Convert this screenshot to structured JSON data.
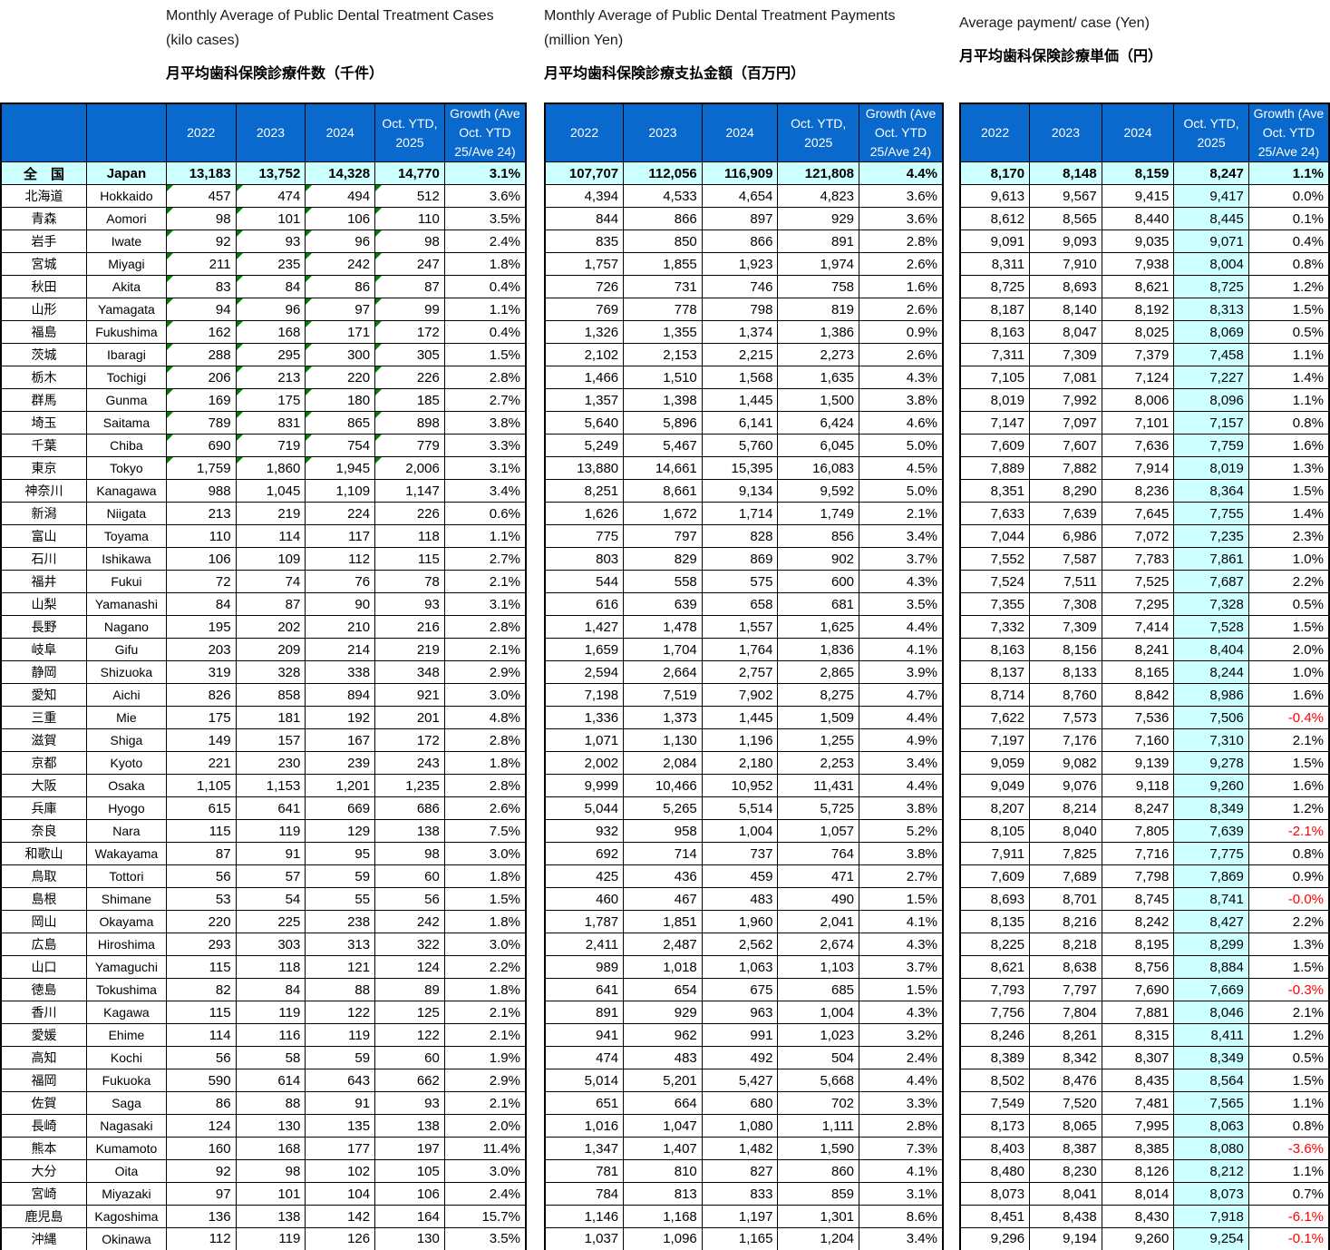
{
  "colors": {
    "header_bg": "#0a69cd",
    "header_text": "#FFFFFF",
    "japan_row_bg": "#CCFFFF",
    "highlight_col_bg": "#CCFFFF",
    "negative_text": "#FF0000",
    "marker_green": "#008000"
  },
  "japan_label": {
    "jp": "全　国",
    "en": "Japan"
  },
  "prefectures": [
    {
      "jp": "北海道",
      "en": "Hokkaido"
    },
    {
      "jp": "青森",
      "en": "Aomori"
    },
    {
      "jp": "岩手",
      "en": "Iwate"
    },
    {
      "jp": "宮城",
      "en": "Miyagi"
    },
    {
      "jp": "秋田",
      "en": "Akita"
    },
    {
      "jp": "山形",
      "en": "Yamagata"
    },
    {
      "jp": "福島",
      "en": "Fukushima"
    },
    {
      "jp": "茨城",
      "en": "Ibaragi"
    },
    {
      "jp": "栃木",
      "en": "Tochigi"
    },
    {
      "jp": "群馬",
      "en": "Gunma"
    },
    {
      "jp": "埼玉",
      "en": "Saitama"
    },
    {
      "jp": "千葉",
      "en": "Chiba"
    },
    {
      "jp": "東京",
      "en": "Tokyo"
    },
    {
      "jp": "神奈川",
      "en": "Kanagawa"
    },
    {
      "jp": "新潟",
      "en": "Niigata"
    },
    {
      "jp": "富山",
      "en": "Toyama"
    },
    {
      "jp": "石川",
      "en": "Ishikawa"
    },
    {
      "jp": "福井",
      "en": "Fukui"
    },
    {
      "jp": "山梨",
      "en": "Yamanashi"
    },
    {
      "jp": "長野",
      "en": "Nagano"
    },
    {
      "jp": "岐阜",
      "en": "Gifu"
    },
    {
      "jp": "静岡",
      "en": "Shizuoka"
    },
    {
      "jp": "愛知",
      "en": "Aichi"
    },
    {
      "jp": "三重",
      "en": "Mie"
    },
    {
      "jp": "滋賀",
      "en": "Shiga"
    },
    {
      "jp": "京都",
      "en": "Kyoto"
    },
    {
      "jp": "大阪",
      "en": "Osaka"
    },
    {
      "jp": "兵庫",
      "en": "Hyogo"
    },
    {
      "jp": "奈良",
      "en": "Nara"
    },
    {
      "jp": "和歌山",
      "en": "Wakayama"
    },
    {
      "jp": "鳥取",
      "en": "Tottori"
    },
    {
      "jp": "島根",
      "en": "Shimane"
    },
    {
      "jp": "岡山",
      "en": "Okayama"
    },
    {
      "jp": "広島",
      "en": "Hiroshima"
    },
    {
      "jp": "山口",
      "en": "Yamaguchi"
    },
    {
      "jp": "徳島",
      "en": "Tokushima"
    },
    {
      "jp": "香川",
      "en": "Kagawa"
    },
    {
      "jp": "愛媛",
      "en": "Ehime"
    },
    {
      "jp": "高知",
      "en": "Kochi"
    },
    {
      "jp": "福岡",
      "en": "Fukuoka"
    },
    {
      "jp": "佐賀",
      "en": "Saga"
    },
    {
      "jp": "長崎",
      "en": "Nagasaki"
    },
    {
      "jp": "熊本",
      "en": "Kumamoto"
    },
    {
      "jp": "大分",
      "en": "Oita"
    },
    {
      "jp": "宮崎",
      "en": "Miyazaki"
    },
    {
      "jp": "鹿児島",
      "en": "Kagoshima"
    },
    {
      "jp": "沖縄",
      "en": "Okinawa"
    }
  ],
  "tables": [
    {
      "title_en1": "Monthly Average of Public Dental Treatment Cases",
      "title_en2": "(kilo cases)",
      "title_jp": "月平均歯科保険診療件数（千件）",
      "columns": [
        "2022",
        "2023",
        "2024",
        "Oct.  YTD, 2025",
        "Growth (Ave Oct.  YTD 25/Ave 24)"
      ],
      "marker_row_count": 13,
      "japan": [
        "13,183",
        "13,752",
        "14,328",
        "14,770",
        "3.1%"
      ],
      "rows": [
        [
          "457",
          "474",
          "494",
          "512",
          "3.6%"
        ],
        [
          "98",
          "101",
          "106",
          "110",
          "3.5%"
        ],
        [
          "92",
          "93",
          "96",
          "98",
          "2.4%"
        ],
        [
          "211",
          "235",
          "242",
          "247",
          "1.8%"
        ],
        [
          "83",
          "84",
          "86",
          "87",
          "0.4%"
        ],
        [
          "94",
          "96",
          "97",
          "99",
          "1.1%"
        ],
        [
          "162",
          "168",
          "171",
          "172",
          "0.4%"
        ],
        [
          "288",
          "295",
          "300",
          "305",
          "1.5%"
        ],
        [
          "206",
          "213",
          "220",
          "226",
          "2.8%"
        ],
        [
          "169",
          "175",
          "180",
          "185",
          "2.7%"
        ],
        [
          "789",
          "831",
          "865",
          "898",
          "3.8%"
        ],
        [
          "690",
          "719",
          "754",
          "779",
          "3.3%"
        ],
        [
          "1,759",
          "1,860",
          "1,945",
          "2,006",
          "3.1%"
        ],
        [
          "988",
          "1,045",
          "1,109",
          "1,147",
          "3.4%"
        ],
        [
          "213",
          "219",
          "224",
          "226",
          "0.6%"
        ],
        [
          "110",
          "114",
          "117",
          "118",
          "1.1%"
        ],
        [
          "106",
          "109",
          "112",
          "115",
          "2.7%"
        ],
        [
          "72",
          "74",
          "76",
          "78",
          "2.1%"
        ],
        [
          "84",
          "87",
          "90",
          "93",
          "3.1%"
        ],
        [
          "195",
          "202",
          "210",
          "216",
          "2.8%"
        ],
        [
          "203",
          "209",
          "214",
          "219",
          "2.1%"
        ],
        [
          "319",
          "328",
          "338",
          "348",
          "2.9%"
        ],
        [
          "826",
          "858",
          "894",
          "921",
          "3.0%"
        ],
        [
          "175",
          "181",
          "192",
          "201",
          "4.8%"
        ],
        [
          "149",
          "157",
          "167",
          "172",
          "2.8%"
        ],
        [
          "221",
          "230",
          "239",
          "243",
          "1.8%"
        ],
        [
          "1,105",
          "1,153",
          "1,201",
          "1,235",
          "2.8%"
        ],
        [
          "615",
          "641",
          "669",
          "686",
          "2.6%"
        ],
        [
          "115",
          "119",
          "129",
          "138",
          "7.5%"
        ],
        [
          "87",
          "91",
          "95",
          "98",
          "3.0%"
        ],
        [
          "56",
          "57",
          "59",
          "60",
          "1.8%"
        ],
        [
          "53",
          "54",
          "55",
          "56",
          "1.5%"
        ],
        [
          "220",
          "225",
          "238",
          "242",
          "1.8%"
        ],
        [
          "293",
          "303",
          "313",
          "322",
          "3.0%"
        ],
        [
          "115",
          "118",
          "121",
          "124",
          "2.2%"
        ],
        [
          "82",
          "84",
          "88",
          "89",
          "1.8%"
        ],
        [
          "115",
          "119",
          "122",
          "125",
          "2.1%"
        ],
        [
          "114",
          "116",
          "119",
          "122",
          "2.1%"
        ],
        [
          "56",
          "58",
          "59",
          "60",
          "1.9%"
        ],
        [
          "590",
          "614",
          "643",
          "662",
          "2.9%"
        ],
        [
          "86",
          "88",
          "91",
          "93",
          "2.1%"
        ],
        [
          "124",
          "130",
          "135",
          "138",
          "2.0%"
        ],
        [
          "160",
          "168",
          "177",
          "197",
          "11.4%"
        ],
        [
          "92",
          "98",
          "102",
          "105",
          "3.0%"
        ],
        [
          "97",
          "101",
          "104",
          "106",
          "2.4%"
        ],
        [
          "136",
          "138",
          "142",
          "164",
          "15.7%"
        ],
        [
          "112",
          "119",
          "126",
          "130",
          "3.5%"
        ]
      ]
    },
    {
      "title_en1": "Monthly Average of Public Dental Treatment Payments",
      "title_en2": "(million Yen)",
      "title_jp": "月平均歯科保険診療支払金額（百万円）",
      "columns": [
        "2022",
        "2023",
        "2024",
        "Oct.  YTD, 2025",
        "Growth (Ave Oct.  YTD 25/Ave 24)"
      ],
      "marker_row_count": 0,
      "japan": [
        "107,707",
        "112,056",
        "116,909",
        "121,808",
        "4.4%"
      ],
      "rows": [
        [
          "4,394",
          "4,533",
          "4,654",
          "4,823",
          "3.6%"
        ],
        [
          "844",
          "866",
          "897",
          "929",
          "3.6%"
        ],
        [
          "835",
          "850",
          "866",
          "891",
          "2.8%"
        ],
        [
          "1,757",
          "1,855",
          "1,923",
          "1,974",
          "2.6%"
        ],
        [
          "726",
          "731",
          "746",
          "758",
          "1.6%"
        ],
        [
          "769",
          "778",
          "798",
          "819",
          "2.6%"
        ],
        [
          "1,326",
          "1,355",
          "1,374",
          "1,386",
          "0.9%"
        ],
        [
          "2,102",
          "2,153",
          "2,215",
          "2,273",
          "2.6%"
        ],
        [
          "1,466",
          "1,510",
          "1,568",
          "1,635",
          "4.3%"
        ],
        [
          "1,357",
          "1,398",
          "1,445",
          "1,500",
          "3.8%"
        ],
        [
          "5,640",
          "5,896",
          "6,141",
          "6,424",
          "4.6%"
        ],
        [
          "5,249",
          "5,467",
          "5,760",
          "6,045",
          "5.0%"
        ],
        [
          "13,880",
          "14,661",
          "15,395",
          "16,083",
          "4.5%"
        ],
        [
          "8,251",
          "8,661",
          "9,134",
          "9,592",
          "5.0%"
        ],
        [
          "1,626",
          "1,672",
          "1,714",
          "1,749",
          "2.1%"
        ],
        [
          "775",
          "797",
          "828",
          "856",
          "3.4%"
        ],
        [
          "803",
          "829",
          "869",
          "902",
          "3.7%"
        ],
        [
          "544",
          "558",
          "575",
          "600",
          "4.3%"
        ],
        [
          "616",
          "639",
          "658",
          "681",
          "3.5%"
        ],
        [
          "1,427",
          "1,478",
          "1,557",
          "1,625",
          "4.4%"
        ],
        [
          "1,659",
          "1,704",
          "1,764",
          "1,836",
          "4.1%"
        ],
        [
          "2,594",
          "2,664",
          "2,757",
          "2,865",
          "3.9%"
        ],
        [
          "7,198",
          "7,519",
          "7,902",
          "8,275",
          "4.7%"
        ],
        [
          "1,336",
          "1,373",
          "1,445",
          "1,509",
          "4.4%"
        ],
        [
          "1,071",
          "1,130",
          "1,196",
          "1,255",
          "4.9%"
        ],
        [
          "2,002",
          "2,084",
          "2,180",
          "2,253",
          "3.4%"
        ],
        [
          "9,999",
          "10,466",
          "10,952",
          "11,431",
          "4.4%"
        ],
        [
          "5,044",
          "5,265",
          "5,514",
          "5,725",
          "3.8%"
        ],
        [
          "932",
          "958",
          "1,004",
          "1,057",
          "5.2%"
        ],
        [
          "692",
          "714",
          "737",
          "764",
          "3.8%"
        ],
        [
          "425",
          "436",
          "459",
          "471",
          "2.7%"
        ],
        [
          "460",
          "467",
          "483",
          "490",
          "1.5%"
        ],
        [
          "1,787",
          "1,851",
          "1,960",
          "2,041",
          "4.1%"
        ],
        [
          "2,411",
          "2,487",
          "2,562",
          "2,674",
          "4.3%"
        ],
        [
          "989",
          "1,018",
          "1,063",
          "1,103",
          "3.7%"
        ],
        [
          "641",
          "654",
          "675",
          "685",
          "1.5%"
        ],
        [
          "891",
          "929",
          "963",
          "1,004",
          "4.3%"
        ],
        [
          "941",
          "962",
          "991",
          "1,023",
          "3.2%"
        ],
        [
          "474",
          "483",
          "492",
          "504",
          "2.4%"
        ],
        [
          "5,014",
          "5,201",
          "5,427",
          "5,668",
          "4.4%"
        ],
        [
          "651",
          "664",
          "680",
          "702",
          "3.3%"
        ],
        [
          "1,016",
          "1,047",
          "1,080",
          "1,111",
          "2.8%"
        ],
        [
          "1,347",
          "1,407",
          "1,482",
          "1,590",
          "7.3%"
        ],
        [
          "781",
          "810",
          "827",
          "860",
          "4.1%"
        ],
        [
          "784",
          "813",
          "833",
          "859",
          "3.1%"
        ],
        [
          "1,146",
          "1,168",
          "1,197",
          "1,301",
          "8.6%"
        ],
        [
          "1,037",
          "1,096",
          "1,165",
          "1,204",
          "3.4%"
        ]
      ]
    },
    {
      "title_en1": "Average payment/ case (Yen)",
      "title_en2": "",
      "title_jp": "月平均歯科保険診療単価（円）",
      "columns": [
        "2022",
        "2023",
        "2024",
        "Oct.  YTD, 2025",
        "Growth (Ave Oct.  YTD 25/Ave 24)"
      ],
      "marker_row_count": 0,
      "japan": [
        "8,170",
        "8,148",
        "8,159",
        "8,247",
        "1.1%"
      ],
      "rows": [
        [
          "9,613",
          "9,567",
          "9,415",
          "9,417",
          "0.0%"
        ],
        [
          "8,612",
          "8,565",
          "8,440",
          "8,445",
          "0.1%"
        ],
        [
          "9,091",
          "9,093",
          "9,035",
          "9,071",
          "0.4%"
        ],
        [
          "8,311",
          "7,910",
          "7,938",
          "8,004",
          "0.8%"
        ],
        [
          "8,725",
          "8,693",
          "8,621",
          "8,725",
          "1.2%"
        ],
        [
          "8,187",
          "8,140",
          "8,192",
          "8,313",
          "1.5%"
        ],
        [
          "8,163",
          "8,047",
          "8,025",
          "8,069",
          "0.5%"
        ],
        [
          "7,311",
          "7,309",
          "7,379",
          "7,458",
          "1.1%"
        ],
        [
          "7,105",
          "7,081",
          "7,124",
          "7,227",
          "1.4%"
        ],
        [
          "8,019",
          "7,992",
          "8,006",
          "8,096",
          "1.1%"
        ],
        [
          "7,147",
          "7,097",
          "7,101",
          "7,157",
          "0.8%"
        ],
        [
          "7,609",
          "7,607",
          "7,636",
          "7,759",
          "1.6%"
        ],
        [
          "7,889",
          "7,882",
          "7,914",
          "8,019",
          "1.3%"
        ],
        [
          "8,351",
          "8,290",
          "8,236",
          "8,364",
          "1.5%"
        ],
        [
          "7,633",
          "7,639",
          "7,645",
          "7,755",
          "1.4%"
        ],
        [
          "7,044",
          "6,986",
          "7,072",
          "7,235",
          "2.3%"
        ],
        [
          "7,552",
          "7,587",
          "7,783",
          "7,861",
          "1.0%"
        ],
        [
          "7,524",
          "7,511",
          "7,525",
          "7,687",
          "2.2%"
        ],
        [
          "7,355",
          "7,308",
          "7,295",
          "7,328",
          "0.5%"
        ],
        [
          "7,332",
          "7,309",
          "7,414",
          "7,528",
          "1.5%"
        ],
        [
          "8,163",
          "8,156",
          "8,241",
          "8,404",
          "2.0%"
        ],
        [
          "8,137",
          "8,133",
          "8,165",
          "8,244",
          "1.0%"
        ],
        [
          "8,714",
          "8,760",
          "8,842",
          "8,986",
          "1.6%"
        ],
        [
          "7,622",
          "7,573",
          "7,536",
          "7,506",
          "-0.4%"
        ],
        [
          "7,197",
          "7,176",
          "7,160",
          "7,310",
          "2.1%"
        ],
        [
          "9,059",
          "9,082",
          "9,139",
          "9,278",
          "1.5%"
        ],
        [
          "9,049",
          "9,076",
          "9,118",
          "9,260",
          "1.6%"
        ],
        [
          "8,207",
          "8,214",
          "8,247",
          "8,349",
          "1.2%"
        ],
        [
          "8,105",
          "8,040",
          "7,805",
          "7,639",
          "-2.1%"
        ],
        [
          "7,911",
          "7,825",
          "7,716",
          "7,775",
          "0.8%"
        ],
        [
          "7,609",
          "7,689",
          "7,798",
          "7,869",
          "0.9%"
        ],
        [
          "8,693",
          "8,701",
          "8,745",
          "8,741",
          "-0.0%"
        ],
        [
          "8,135",
          "8,216",
          "8,242",
          "8,427",
          "2.2%"
        ],
        [
          "8,225",
          "8,218",
          "8,195",
          "8,299",
          "1.3%"
        ],
        [
          "8,621",
          "8,638",
          "8,756",
          "8,884",
          "1.5%"
        ],
        [
          "7,793",
          "7,797",
          "7,690",
          "7,669",
          "-0.3%"
        ],
        [
          "7,756",
          "7,804",
          "7,881",
          "8,046",
          "2.1%"
        ],
        [
          "8,246",
          "8,261",
          "8,315",
          "8,411",
          "1.2%"
        ],
        [
          "8,389",
          "8,342",
          "8,307",
          "8,349",
          "0.5%"
        ],
        [
          "8,502",
          "8,476",
          "8,435",
          "8,564",
          "1.5%"
        ],
        [
          "7,549",
          "7,520",
          "7,481",
          "7,565",
          "1.1%"
        ],
        [
          "8,173",
          "8,065",
          "7,995",
          "8,063",
          "0.8%"
        ],
        [
          "8,403",
          "8,387",
          "8,385",
          "8,080",
          "-3.6%"
        ],
        [
          "8,480",
          "8,230",
          "8,126",
          "8,212",
          "1.1%"
        ],
        [
          "8,073",
          "8,041",
          "8,014",
          "8,073",
          "0.7%"
        ],
        [
          "8,451",
          "8,438",
          "8,430",
          "7,918",
          "-6.1%"
        ],
        [
          "9,296",
          "9,194",
          "9,260",
          "9,254",
          "-0.1%"
        ]
      ]
    }
  ]
}
